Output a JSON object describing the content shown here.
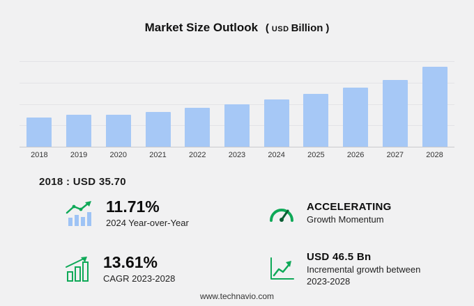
{
  "header": {
    "title": "Market Size Outlook",
    "unit_open": "(",
    "unit_currency": "USD",
    "unit_name": "Billion",
    "unit_close": ")"
  },
  "chart_data": {
    "type": "bar",
    "title": "Market Size Outlook (USD Billion)",
    "categories": [
      "2018",
      "2019",
      "2020",
      "2021",
      "2022",
      "2023",
      "2024",
      "2025",
      "2026",
      "2027",
      "2028"
    ],
    "values": [
      35.7,
      39.4,
      38.9,
      43.1,
      47.5,
      52.0,
      58.1,
      64.5,
      72.5,
      82.0,
      98.5
    ],
    "xlabel": "",
    "ylabel": "",
    "ylim": [
      0,
      105
    ],
    "grid": true,
    "legend": "none",
    "bar_color": "#a6c8f6"
  },
  "annotation": {
    "text": "2018 : USD  35.70"
  },
  "stats": {
    "items": [
      {
        "icon": "yoy-trend-icon",
        "value": "11.71%",
        "label": "2024 Year-over-Year"
      },
      {
        "icon": "gauge-icon",
        "value": "ACCELERATING",
        "label": "Growth Momentum"
      },
      {
        "icon": "cagr-bars-icon",
        "value": "13.61%",
        "label": "CAGR 2023-2028"
      },
      {
        "icon": "incremental-growth-icon",
        "value": "USD 46.5 Bn",
        "label": "Incremental growth between 2023-2028"
      }
    ]
  },
  "footer": {
    "url": "www.technavio.com"
  },
  "colors": {
    "accent_green": "#0fa958",
    "bar_blue": "#a6c8f6",
    "background": "#f1f1f2"
  }
}
